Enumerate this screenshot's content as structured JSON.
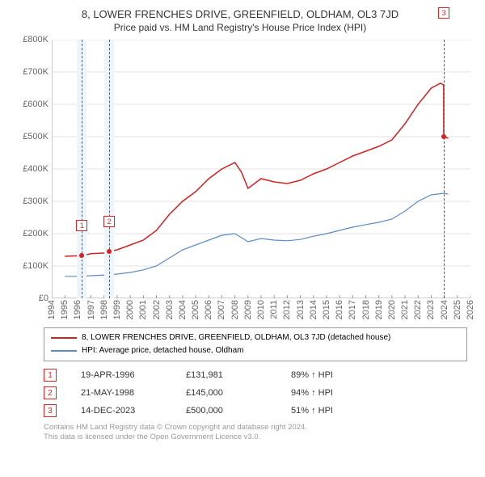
{
  "title": "8, LOWER FRENCHES DRIVE, GREENFIELD, OLDHAM, OL3 7JD",
  "subtitle": "Price paid vs. HM Land Registry's House Price Index (HPI)",
  "chart": {
    "type": "line",
    "background_color": "#ffffff",
    "grid_color": "#e0e0e0",
    "xlim": [
      1994,
      2026
    ],
    "ylim": [
      0,
      800000
    ],
    "ytick_step": 100000,
    "yticks": [
      "£0",
      "£100K",
      "£200K",
      "£300K",
      "£400K",
      "£500K",
      "£600K",
      "£700K",
      "£800K"
    ],
    "xticks": [
      1994,
      1995,
      1996,
      1997,
      1998,
      1999,
      2000,
      2001,
      2002,
      2003,
      2004,
      2005,
      2006,
      2007,
      2008,
      2009,
      2010,
      2011,
      2012,
      2013,
      2014,
      2015,
      2016,
      2017,
      2018,
      2019,
      2020,
      2021,
      2022,
      2023,
      2024,
      2025,
      2026
    ],
    "label_fontsize": 11,
    "title_fontsize": 13,
    "series": {
      "price": {
        "label": "8, LOWER FRENCHES DRIVE, GREENFIELD, OLDHAM, OL3 7JD (detached house)",
        "color": "#d22222",
        "line_width": 1.5,
        "data": [
          [
            1995.0,
            130000
          ],
          [
            1996.3,
            131981
          ],
          [
            1997.0,
            138000
          ],
          [
            1998.0,
            140000
          ],
          [
            1998.4,
            145000
          ],
          [
            1999.0,
            150000
          ],
          [
            2000.0,
            165000
          ],
          [
            2001.0,
            180000
          ],
          [
            2002.0,
            210000
          ],
          [
            2003.0,
            260000
          ],
          [
            2004.0,
            300000
          ],
          [
            2005.0,
            330000
          ],
          [
            2006.0,
            370000
          ],
          [
            2007.0,
            400000
          ],
          [
            2008.0,
            420000
          ],
          [
            2008.5,
            390000
          ],
          [
            2009.0,
            340000
          ],
          [
            2010.0,
            370000
          ],
          [
            2011.0,
            360000
          ],
          [
            2012.0,
            355000
          ],
          [
            2013.0,
            365000
          ],
          [
            2014.0,
            385000
          ],
          [
            2015.0,
            400000
          ],
          [
            2016.0,
            420000
          ],
          [
            2017.0,
            440000
          ],
          [
            2018.0,
            455000
          ],
          [
            2019.0,
            470000
          ],
          [
            2020.0,
            490000
          ],
          [
            2021.0,
            540000
          ],
          [
            2022.0,
            600000
          ],
          [
            2023.0,
            650000
          ],
          [
            2023.7,
            665000
          ],
          [
            2023.95,
            660000
          ],
          [
            2023.96,
            500000
          ],
          [
            2024.3,
            495000
          ]
        ]
      },
      "hpi": {
        "label": "HPI: Average price, detached house, Oldham",
        "color": "#5a8bc4",
        "line_width": 1.2,
        "data": [
          [
            1995.0,
            68000
          ],
          [
            1996.0,
            68000
          ],
          [
            1997.0,
            70000
          ],
          [
            1998.0,
            72000
          ],
          [
            1999.0,
            75000
          ],
          [
            2000.0,
            80000
          ],
          [
            2001.0,
            88000
          ],
          [
            2002.0,
            100000
          ],
          [
            2003.0,
            125000
          ],
          [
            2004.0,
            150000
          ],
          [
            2005.0,
            165000
          ],
          [
            2006.0,
            180000
          ],
          [
            2007.0,
            195000
          ],
          [
            2008.0,
            200000
          ],
          [
            2009.0,
            175000
          ],
          [
            2010.0,
            185000
          ],
          [
            2011.0,
            180000
          ],
          [
            2012.0,
            178000
          ],
          [
            2013.0,
            182000
          ],
          [
            2014.0,
            192000
          ],
          [
            2015.0,
            200000
          ],
          [
            2016.0,
            210000
          ],
          [
            2017.0,
            220000
          ],
          [
            2018.0,
            228000
          ],
          [
            2019.0,
            235000
          ],
          [
            2020.0,
            245000
          ],
          [
            2021.0,
            270000
          ],
          [
            2022.0,
            300000
          ],
          [
            2023.0,
            320000
          ],
          [
            2024.0,
            325000
          ],
          [
            2024.3,
            322000
          ]
        ]
      }
    },
    "sale_markers": [
      {
        "n": "1",
        "x": 1996.3,
        "y": 131981,
        "badge_dy": -44,
        "band": true
      },
      {
        "n": "2",
        "x": 1998.39,
        "y": 145000,
        "badge_dy": -44,
        "band": true
      },
      {
        "n": "3",
        "x": 2023.96,
        "y": 500000,
        "badge_dy": -160,
        "band": false
      }
    ]
  },
  "legend": {
    "series1": "8, LOWER FRENCHES DRIVE, GREENFIELD, OLDHAM, OL3 7JD (detached house)",
    "series2": "HPI: Average price, detached house, Oldham",
    "color1": "#d22222",
    "color2": "#5a8bc4"
  },
  "markers": [
    {
      "n": "1",
      "date": "19-APR-1996",
      "price": "£131,981",
      "pct": "89% ↑ HPI"
    },
    {
      "n": "2",
      "date": "21-MAY-1998",
      "price": "£145,000",
      "pct": "94% ↑ HPI"
    },
    {
      "n": "3",
      "date": "14-DEC-2023",
      "price": "£500,000",
      "pct": "51% ↑ HPI"
    }
  ],
  "footer": {
    "line1": "Contains HM Land Registry data © Crown copyright and database right 2024.",
    "line2": "This data is licensed under the Open Government Licence v3.0."
  }
}
